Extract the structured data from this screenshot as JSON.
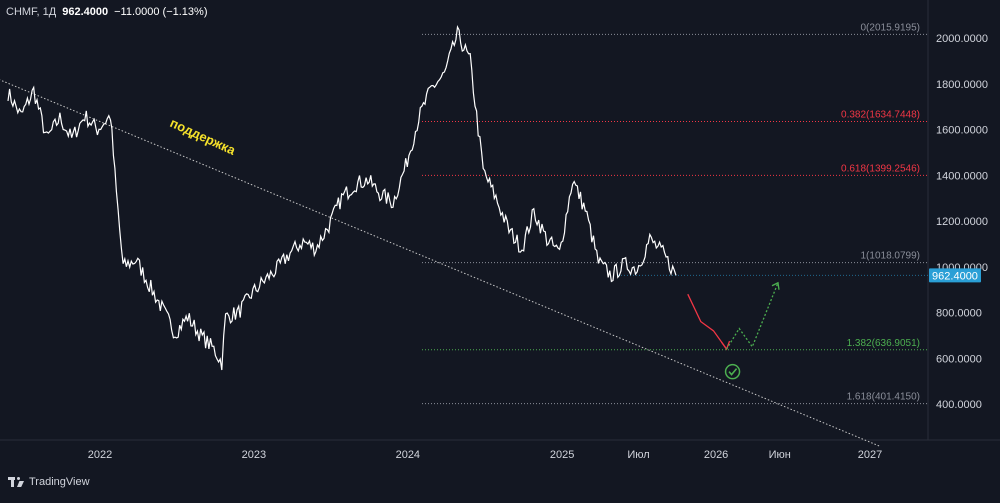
{
  "legend": {
    "symbol": "CHMF, 1Д",
    "last": "962.4000",
    "change": "−11.0000 (−1.13%)"
  },
  "brand": {
    "name": "TradingView"
  },
  "colors": {
    "background": "#131722",
    "price_line": "#ffffff",
    "support_line": "#c8c8c8",
    "support_label": "#f5e12b",
    "fib_gray": "#8a8e99",
    "fib_red": "#f23645",
    "fib_green": "#4caf50",
    "last_price_bg": "#2a9fd6",
    "arrow_down": "#f23645",
    "arrow_up": "#4caf50"
  },
  "chart_data": {
    "type": "line",
    "title": "",
    "xlabel": "",
    "ylabel": "",
    "ylim": [
      260,
      2110
    ],
    "x_ticks": [
      "2022",
      "2023",
      "2024",
      "2025",
      "Июл",
      "2026",
      "Июн",
      "2027"
    ],
    "y_ticks": [
      "2000.0000",
      "1800.0000",
      "1600.0000",
      "1400.0000",
      "1200.0000",
      "1000.0000",
      "800.0000",
      "600.0000",
      "400.0000"
    ],
    "last_price_label": "962.4000",
    "price_series": [
      [
        "2021-10",
        1760
      ],
      [
        "2021-11",
        1660
      ],
      [
        "2021-12",
        1770
      ],
      [
        "2022-01",
        1560
      ],
      [
        "2022-02",
        1650
      ],
      [
        "2022-03",
        1560
      ],
      [
        "2022-04",
        1660
      ],
      [
        "2022-05",
        1600
      ],
      [
        "2022-06",
        1660
      ],
      [
        "2022-06-15",
        1320
      ],
      [
        "2022-07",
        1000
      ],
      [
        "2022-08",
        1030
      ],
      [
        "2022-09",
        920
      ],
      [
        "2022-10",
        820
      ],
      [
        "2022-11",
        710
      ],
      [
        "2022-12",
        780
      ],
      [
        "2023-01",
        700
      ],
      [
        "2023-02",
        640
      ],
      [
        "2023-02-20",
        580
      ],
      [
        "2023-03",
        780
      ],
      [
        "2023-04",
        800
      ],
      [
        "2023-05",
        880
      ],
      [
        "2023-06",
        940
      ],
      [
        "2023-07",
        990
      ],
      [
        "2023-08",
        1060
      ],
      [
        "2023-09",
        1110
      ],
      [
        "2023-10",
        1080
      ],
      [
        "2023-11",
        1180
      ],
      [
        "2023-12",
        1300
      ],
      [
        "2024-01",
        1360
      ],
      [
        "2024-02",
        1380
      ],
      [
        "2024-03",
        1320
      ],
      [
        "2024-04",
        1280
      ],
      [
        "2024-05",
        1440
      ],
      [
        "2024-06",
        1650
      ],
      [
        "2024-07",
        1780
      ],
      [
        "2024-08",
        1840
      ],
      [
        "2024-09",
        2016
      ],
      [
        "2024-10",
        1900
      ],
      [
        "2024-10-20",
        1600
      ],
      [
        "2024-11",
        1420
      ],
      [
        "2024-12",
        1300
      ],
      [
        "2025-01",
        1160
      ],
      [
        "2025-02",
        1080
      ],
      [
        "2025-03",
        1240
      ],
      [
        "2025-04",
        1120
      ],
      [
        "2025-05",
        1060
      ],
      [
        "2025-06",
        1380
      ],
      [
        "2025-07",
        1250
      ],
      [
        "2025-08",
        1020
      ],
      [
        "2025-09",
        960
      ],
      [
        "2025-10",
        1010
      ],
      [
        "2025-11",
        990
      ],
      [
        "2025-12",
        1120
      ],
      [
        "2026-01",
        1060
      ],
      [
        "2026-02",
        962.4
      ]
    ],
    "support_line": {
      "label": "поддержка",
      "from": [
        "2021-10",
        1860
      ],
      "to": [
        "2027-01",
        215
      ]
    },
    "fibonacci": [
      {
        "level": "0",
        "price": 2015.9195,
        "label": "0(2015.9195)",
        "color": "gray"
      },
      {
        "level": "0.382",
        "price": 1634.7448,
        "label": "0.382(1634.7448)",
        "color": "red"
      },
      {
        "level": "0.618",
        "price": 1399.2546,
        "label": "0.618(1399.2546)",
        "color": "red"
      },
      {
        "level": "1",
        "price": 1018.0799,
        "label": "1(1018.0799)",
        "color": "gray"
      },
      {
        "level": "1.382",
        "price": 636.9051,
        "label": "1.382(636.9051)",
        "color": "green"
      },
      {
        "level": "1.618",
        "price": 401.415,
        "label": "1.618(401.4150)",
        "color": "gray"
      }
    ],
    "projection_down": [
      [
        "2026-03",
        880
      ],
      [
        "2026-04",
        760
      ],
      [
        "2026-05",
        720
      ],
      [
        "2026-06",
        640
      ]
    ],
    "projection_up": [
      [
        "2026-06",
        640
      ],
      [
        "2026-07",
        730
      ],
      [
        "2026-08",
        650
      ],
      [
        "2026-10",
        930
      ]
    ],
    "target_marker": "check-circle"
  }
}
